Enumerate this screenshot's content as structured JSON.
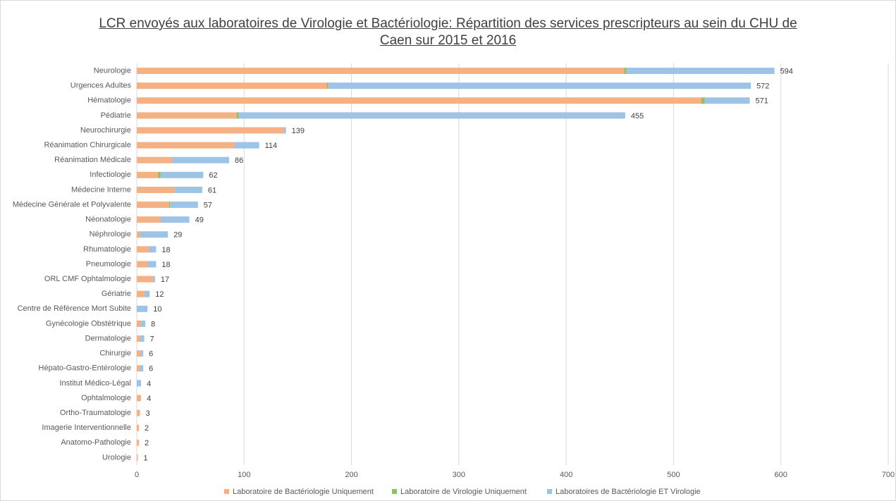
{
  "chart_data": {
    "type": "stacked-barh",
    "title": "LCR envoyés aux laboratoires de Virologie et Bactériologie: Répartition des services prescripteurs au sein du CHU de Caen sur 2015 et 2016",
    "categories": [
      "Neurologie",
      "Urgences Adultes",
      "Hématologie",
      "Pédiatrie",
      "Neurochirurgie",
      "Réanimation Chirurgicale",
      "Réanimation Médicale",
      "Infectiologie",
      "Médecine Interne",
      "Médecine Générale et Polyvalente",
      "Néonatologie",
      "Néphrologie",
      "Rhumatologie",
      "Pneumologie",
      "ORL CMF Ophtalmologie",
      "Gériatrie",
      "Centre de Référence Mort Subite",
      "Gynécologie Obstétrique",
      "Dermatologie",
      "Chirurgie",
      "Hépato-Gastro-Entérologie",
      "Institut Médico-Légal",
      "Ophtalmologie",
      "Ortho-Traumatologie",
      "Imagerie Interventionnelle",
      "Anatomo-Pathologie",
      "Urologie"
    ],
    "series": [
      {
        "name": "Laboratoire de Bactériologie Uniquement",
        "color": "#f4b183",
        "values": [
          454,
          177,
          526,
          93,
          137,
          91,
          33,
          20,
          35,
          30,
          22,
          3,
          11,
          10,
          15,
          7,
          0,
          4,
          3,
          4,
          3,
          0,
          4,
          3,
          2,
          2,
          1
        ]
      },
      {
        "name": "Laboratoire de Virologie Uniquement",
        "color": "#8cc168",
        "values": [
          2,
          1,
          3,
          2,
          0,
          0,
          0,
          2,
          0,
          1,
          0,
          0,
          0,
          0,
          0,
          0,
          0,
          0,
          0,
          0,
          0,
          0,
          0,
          0,
          0,
          0,
          0
        ]
      },
      {
        "name": "Laboratoires de Bactériologie ET Virologie",
        "color": "#9dc3e6",
        "values": [
          138,
          394,
          42,
          360,
          2,
          23,
          53,
          40,
          26,
          26,
          27,
          26,
          7,
          8,
          2,
          5,
          10,
          4,
          4,
          2,
          3,
          4,
          0,
          0,
          0,
          0,
          0
        ]
      }
    ],
    "totals": [
      594,
      572,
      571,
      455,
      139,
      114,
      86,
      62,
      61,
      57,
      49,
      29,
      18,
      18,
      17,
      12,
      10,
      8,
      7,
      6,
      6,
      4,
      4,
      3,
      2,
      2,
      1
    ],
    "xlim": [
      0,
      700
    ],
    "xticks": [
      0,
      100,
      200,
      300,
      400,
      500,
      600,
      700
    ],
    "grid": true,
    "legend": "bottom"
  }
}
